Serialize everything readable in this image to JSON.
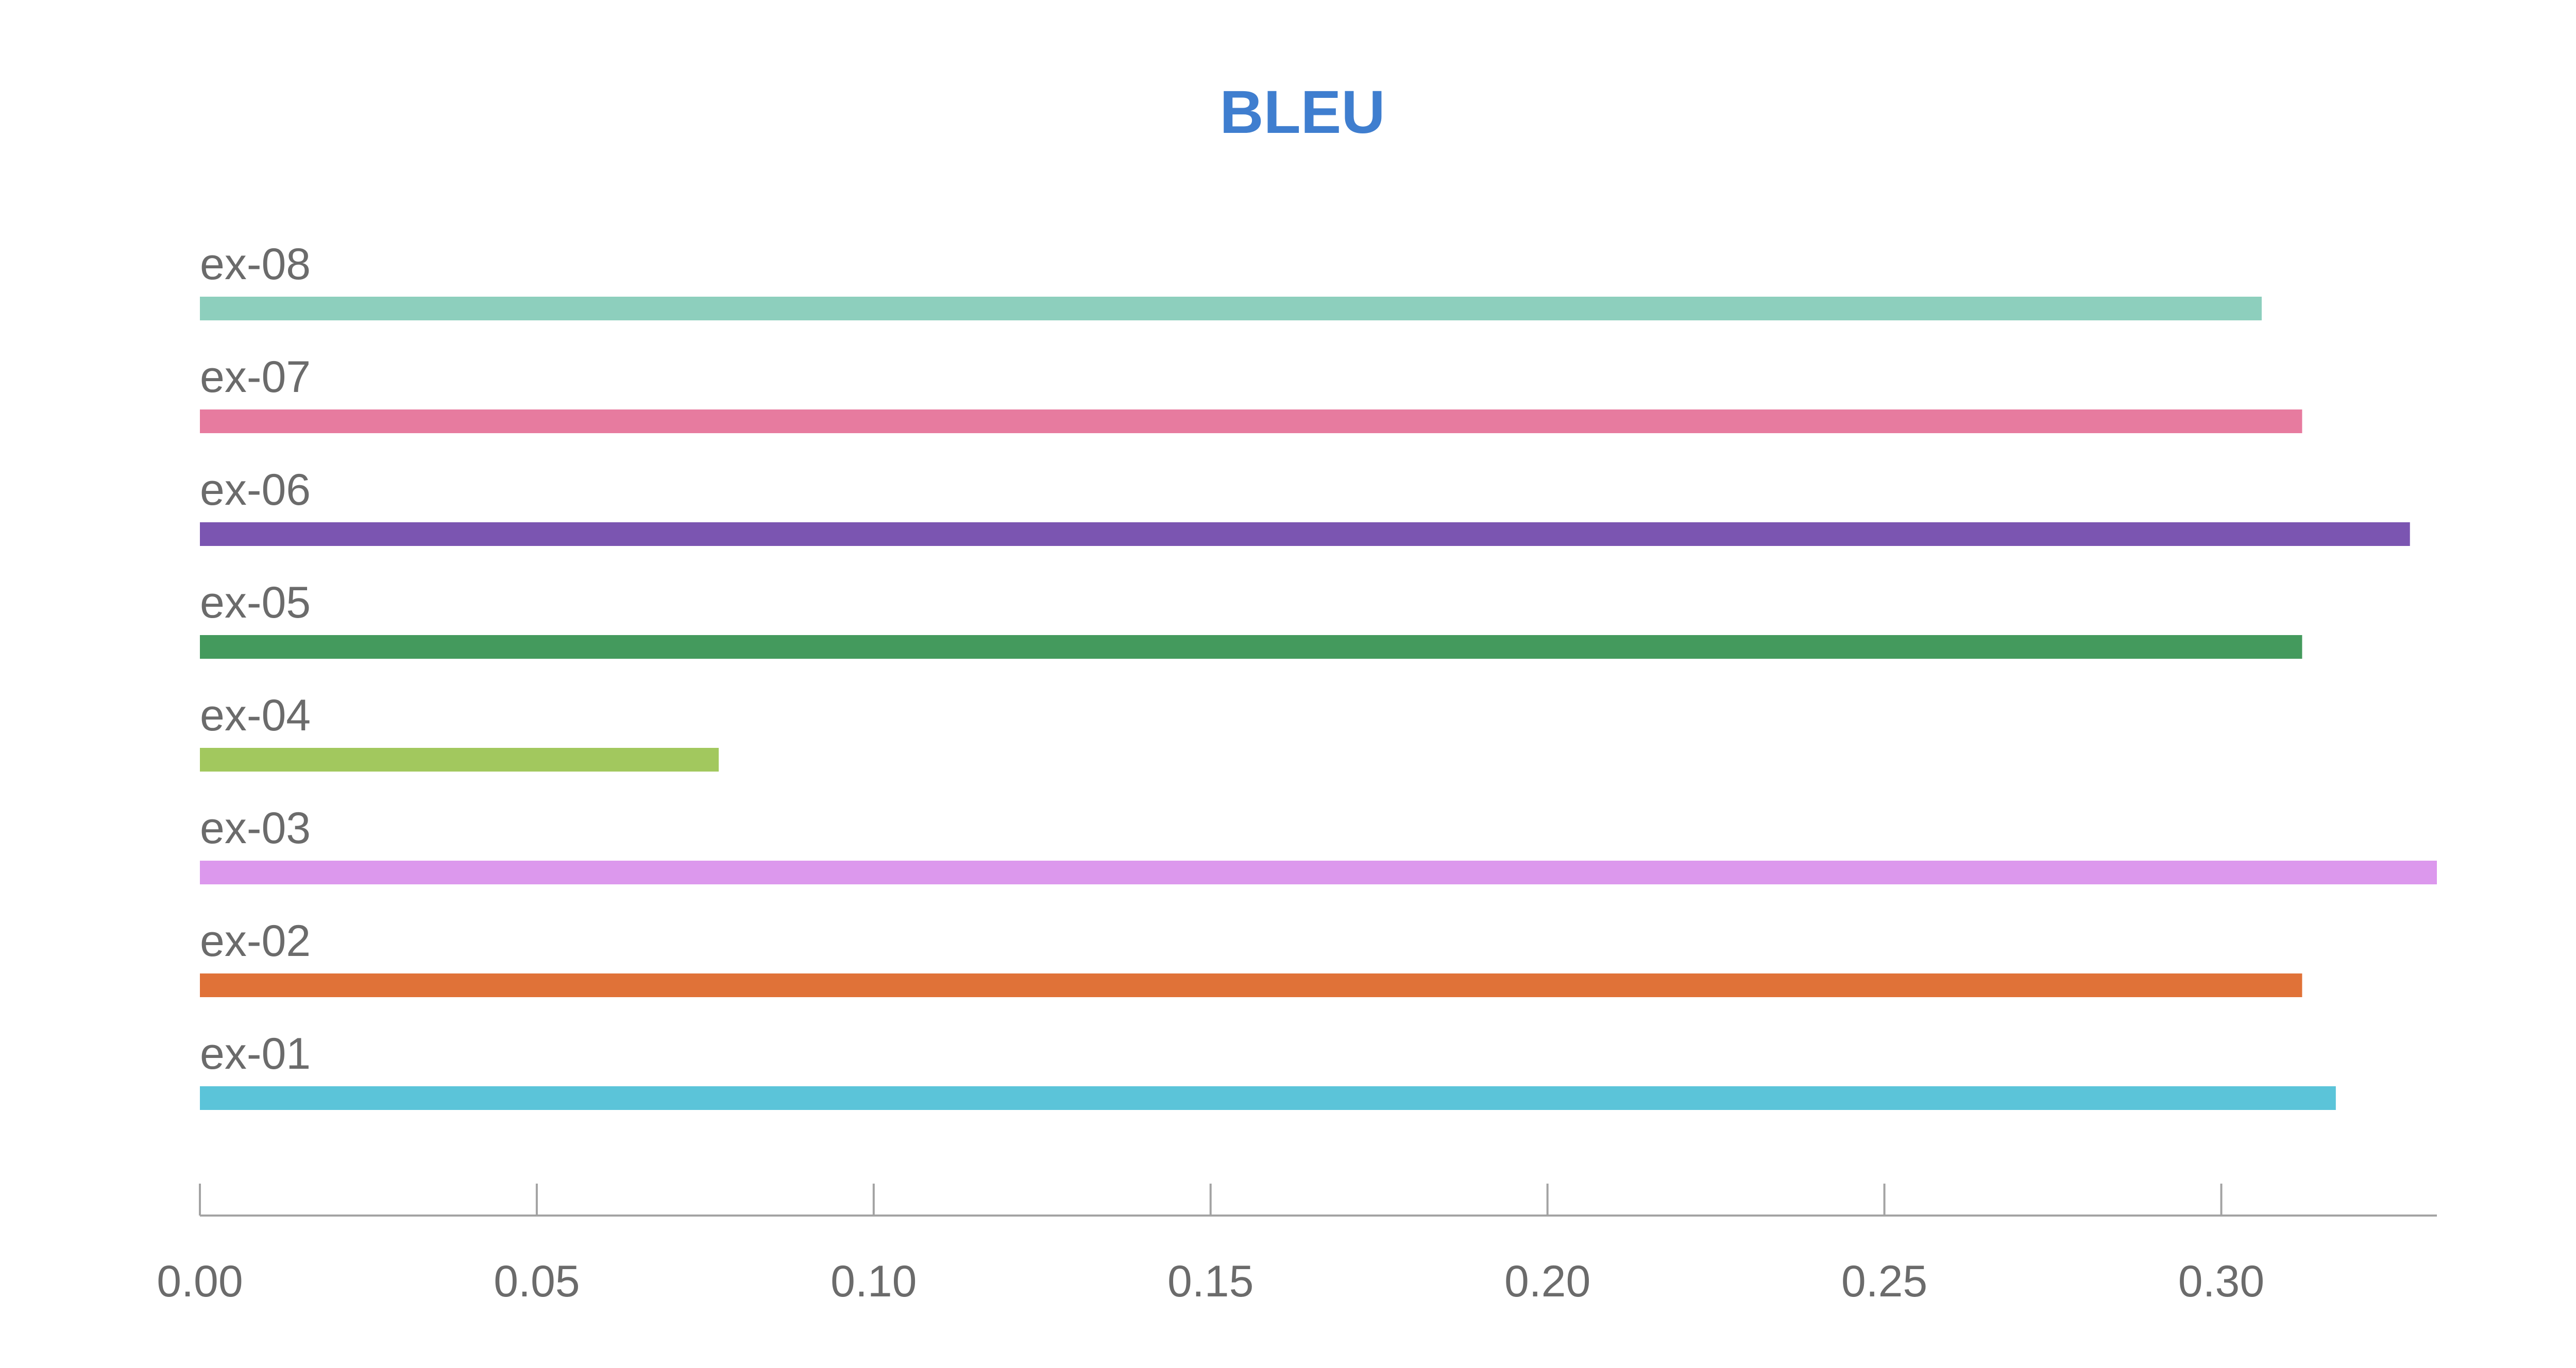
{
  "chart_data": {
    "type": "bar",
    "orientation": "horizontal",
    "title": "BLEU",
    "xlabel": "",
    "ylabel": "",
    "xlim": [
      0,
      0.332
    ],
    "xticks": [
      0.0,
      0.05,
      0.1,
      0.15,
      0.2,
      0.25,
      0.3
    ],
    "xtick_labels": [
      "0.00",
      "0.05",
      "0.10",
      "0.15",
      "0.20",
      "0.25",
      "0.30"
    ],
    "grid": false,
    "legend": "none",
    "categories": [
      "ex-08",
      "ex-07",
      "ex-06",
      "ex-05",
      "ex-04",
      "ex-03",
      "ex-02",
      "ex-01"
    ],
    "values": [
      0.306,
      0.312,
      0.328,
      0.312,
      0.077,
      0.332,
      0.312,
      0.317
    ],
    "colors": [
      "#8dcfbd",
      "#e77b9f",
      "#7b55b1",
      "#449a5d",
      "#a2c85e",
      "#dc98ed",
      "#e07238",
      "#5bc4d9"
    ]
  },
  "style": {
    "title_color": "#3f7ecf",
    "label_color": "#6b6b6b",
    "axis_color": "#a3a3a3"
  }
}
